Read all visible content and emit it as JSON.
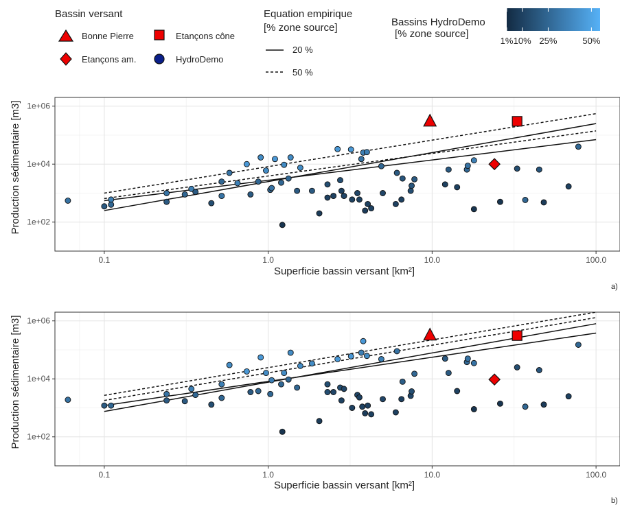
{
  "legend": {
    "shape_title": "Bassin versant",
    "shapes": [
      {
        "label": "Bonne Pierre",
        "symbol": "triangle-icon"
      },
      {
        "label": "Etançons cône",
        "symbol": "square-icon"
      },
      {
        "label": "Etançons am.",
        "symbol": "diamond-icon"
      },
      {
        "label": "HydroDemo",
        "symbol": "circle-icon"
      }
    ],
    "line_title_1": "Equation empirique",
    "line_title_2": "[% zone source]",
    "lines": [
      {
        "label": "20 %",
        "style": "solid"
      },
      {
        "label": "50 %",
        "style": "dashed"
      }
    ],
    "color_title_1": "Bassins HydroDemo",
    "color_title_2": "[% zone source]",
    "color_ticks": [
      {
        "label": "1%",
        "value": 1
      },
      {
        "label": "10%",
        "value": 10
      },
      {
        "label": "25%",
        "value": 25
      },
      {
        "label": "50%",
        "value": 50
      }
    ],
    "color_low": "#132b43",
    "color_high": "#56b1f7"
  },
  "chart_data": [
    {
      "type": "scatter",
      "tag": "a)",
      "xlabel": "Superficie bassin versant [km²]",
      "ylabel": "Production sédimentaire [m3]",
      "x_scale": "log10",
      "y_scale": "log10",
      "xlim": [
        0.05,
        140
      ],
      "ylim": [
        10,
        2000000
      ],
      "x_ticks": [
        {
          "value": 0.1,
          "label": "0.1"
        },
        {
          "value": 1,
          "label": "1.0"
        },
        {
          "value": 10,
          "label": "10.0"
        },
        {
          "value": 100,
          "label": "100.0"
        }
      ],
      "y_ticks": [
        {
          "value": 100,
          "label": "1e+02"
        },
        {
          "value": 10000,
          "label": "1e+04"
        },
        {
          "value": 1000000,
          "label": "1e+06"
        }
      ],
      "grid": true,
      "lines": [
        {
          "style": "solid",
          "x": [
            0.1,
            100
          ],
          "y": [
            250,
            250000
          ]
        },
        {
          "style": "solid",
          "x": [
            0.1,
            100
          ],
          "y": [
            550,
            70000
          ]
        },
        {
          "style": "dashed",
          "x": [
            0.1,
            100
          ],
          "y": [
            1000,
            550000
          ]
        },
        {
          "style": "dashed",
          "x": [
            0.1,
            100
          ],
          "y": [
            650,
            140000
          ]
        }
      ],
      "special": [
        {
          "name": "Bonne Pierre",
          "symbol": "triangle",
          "x": 9.7,
          "y": 300000
        },
        {
          "name": "Etançons cône",
          "symbol": "square",
          "x": 33,
          "y": 300000
        },
        {
          "name": "Etançons am.",
          "symbol": "diamond",
          "x": 24,
          "y": 10000
        }
      ],
      "points": [
        {
          "x": 0.06,
          "y": 550,
          "c": 30
        },
        {
          "x": 0.1,
          "y": 350,
          "c": 20
        },
        {
          "x": 0.11,
          "y": 600,
          "c": 35
        },
        {
          "x": 0.11,
          "y": 400,
          "c": 25
        },
        {
          "x": 0.24,
          "y": 500,
          "c": 20
        },
        {
          "x": 0.24,
          "y": 1000,
          "c": 30
        },
        {
          "x": 0.31,
          "y": 900,
          "c": 25
        },
        {
          "x": 0.34,
          "y": 1400,
          "c": 35
        },
        {
          "x": 0.36,
          "y": 1100,
          "c": 20
        },
        {
          "x": 0.45,
          "y": 450,
          "c": 15
        },
        {
          "x": 0.52,
          "y": 800,
          "c": 30
        },
        {
          "x": 0.52,
          "y": 2500,
          "c": 25
        },
        {
          "x": 0.58,
          "y": 5000,
          "c": 30
        },
        {
          "x": 0.65,
          "y": 2200,
          "c": 35
        },
        {
          "x": 0.74,
          "y": 10000,
          "c": 45
        },
        {
          "x": 0.78,
          "y": 900,
          "c": 20
        },
        {
          "x": 0.87,
          "y": 2500,
          "c": 25
        },
        {
          "x": 0.9,
          "y": 17000,
          "c": 40
        },
        {
          "x": 0.97,
          "y": 6000,
          "c": 40
        },
        {
          "x": 1.03,
          "y": 1300,
          "c": 25
        },
        {
          "x": 1.05,
          "y": 1500,
          "c": 30
        },
        {
          "x": 1.1,
          "y": 15000,
          "c": 45
        },
        {
          "x": 1.2,
          "y": 2300,
          "c": 25
        },
        {
          "x": 1.22,
          "y": 80,
          "c": 5
        },
        {
          "x": 1.25,
          "y": 9500,
          "c": 40
        },
        {
          "x": 1.33,
          "y": 3200,
          "c": 25
        },
        {
          "x": 1.37,
          "y": 17000,
          "c": 40
        },
        {
          "x": 1.5,
          "y": 1200,
          "c": 20
        },
        {
          "x": 1.57,
          "y": 7500,
          "c": 40
        },
        {
          "x": 1.85,
          "y": 1200,
          "c": 20
        },
        {
          "x": 2.05,
          "y": 200,
          "c": 8
        },
        {
          "x": 2.3,
          "y": 700,
          "c": 10
        },
        {
          "x": 2.3,
          "y": 2000,
          "c": 15
        },
        {
          "x": 2.5,
          "y": 800,
          "c": 10
        },
        {
          "x": 2.65,
          "y": 33000,
          "c": 45
        },
        {
          "x": 2.75,
          "y": 2800,
          "c": 15
        },
        {
          "x": 2.8,
          "y": 1200,
          "c": 10
        },
        {
          "x": 2.9,
          "y": 800,
          "c": 12
        },
        {
          "x": 3.2,
          "y": 32000,
          "c": 45
        },
        {
          "x": 3.25,
          "y": 600,
          "c": 10
        },
        {
          "x": 3.5,
          "y": 1000,
          "c": 12
        },
        {
          "x": 3.6,
          "y": 600,
          "c": 10
        },
        {
          "x": 3.7,
          "y": 15000,
          "c": 30
        },
        {
          "x": 3.8,
          "y": 25000,
          "c": 35
        },
        {
          "x": 3.9,
          "y": 250,
          "c": 8
        },
        {
          "x": 4.0,
          "y": 26000,
          "c": 35
        },
        {
          "x": 4.05,
          "y": 420,
          "c": 10
        },
        {
          "x": 4.25,
          "y": 300,
          "c": 10
        },
        {
          "x": 4.9,
          "y": 8500,
          "c": 25
        },
        {
          "x": 5.0,
          "y": 1000,
          "c": 12
        },
        {
          "x": 6.0,
          "y": 420,
          "c": 10
        },
        {
          "x": 6.1,
          "y": 5000,
          "c": 20
        },
        {
          "x": 6.5,
          "y": 600,
          "c": 10
        },
        {
          "x": 6.6,
          "y": 3200,
          "c": 18
        },
        {
          "x": 7.4,
          "y": 1200,
          "c": 15
        },
        {
          "x": 7.5,
          "y": 1800,
          "c": 18
        },
        {
          "x": 7.8,
          "y": 3000,
          "c": 20
        },
        {
          "x": 12,
          "y": 2000,
          "c": 10
        },
        {
          "x": 12.6,
          "y": 6500,
          "c": 20
        },
        {
          "x": 14.2,
          "y": 1600,
          "c": 10
        },
        {
          "x": 16.3,
          "y": 6500,
          "c": 25
        },
        {
          "x": 16.5,
          "y": 8800,
          "c": 30
        },
        {
          "x": 18,
          "y": 13500,
          "c": 35
        },
        {
          "x": 18,
          "y": 280,
          "c": 5
        },
        {
          "x": 26,
          "y": 500,
          "c": 5
        },
        {
          "x": 33,
          "y": 7000,
          "c": 15
        },
        {
          "x": 37,
          "y": 580,
          "c": 25
        },
        {
          "x": 45,
          "y": 6500,
          "c": 18
        },
        {
          "x": 48,
          "y": 480,
          "c": 8
        },
        {
          "x": 68,
          "y": 1700,
          "c": 10
        },
        {
          "x": 78,
          "y": 40000,
          "c": 25
        }
      ]
    },
    {
      "type": "scatter",
      "tag": "b)",
      "xlabel": "Superficie bassin versant [km²]",
      "ylabel": "Production sédimentaire [m3]",
      "x_scale": "log10",
      "y_scale": "log10",
      "xlim": [
        0.05,
        140
      ],
      "ylim": [
        10,
        2000000
      ],
      "x_ticks": [
        {
          "value": 0.1,
          "label": "0.1"
        },
        {
          "value": 1,
          "label": "1.0"
        },
        {
          "value": 10,
          "label": "10.0"
        },
        {
          "value": 100,
          "label": "100.0"
        }
      ],
      "y_ticks": [
        {
          "value": 100,
          "label": "1e+02"
        },
        {
          "value": 10000,
          "label": "1e+04"
        },
        {
          "value": 1000000,
          "label": "1e+06"
        }
      ],
      "grid": true,
      "lines": [
        {
          "style": "solid",
          "x": [
            0.1,
            100
          ],
          "y": [
            750,
            800000
          ]
        },
        {
          "style": "solid",
          "x": [
            0.1,
            100
          ],
          "y": [
            1200,
            380000
          ]
        },
        {
          "style": "dashed",
          "x": [
            0.1,
            100
          ],
          "y": [
            2700,
            2000000
          ]
        },
        {
          "style": "dashed",
          "x": [
            0.1,
            100
          ],
          "y": [
            1800,
            1300000
          ]
        }
      ],
      "special": [
        {
          "name": "Bonne Pierre",
          "symbol": "triangle",
          "x": 9.7,
          "y": 320000
        },
        {
          "name": "Etançons cône",
          "symbol": "square",
          "x": 33,
          "y": 310000
        },
        {
          "name": "Etançons am.",
          "symbol": "diamond",
          "x": 24,
          "y": 9500
        }
      ],
      "points": [
        {
          "x": 0.06,
          "y": 1900,
          "c": 30
        },
        {
          "x": 0.1,
          "y": 1200,
          "c": 20
        },
        {
          "x": 0.11,
          "y": 1200,
          "c": 25
        },
        {
          "x": 0.24,
          "y": 1800,
          "c": 20
        },
        {
          "x": 0.24,
          "y": 3000,
          "c": 30
        },
        {
          "x": 0.31,
          "y": 1700,
          "c": 20
        },
        {
          "x": 0.34,
          "y": 4500,
          "c": 35
        },
        {
          "x": 0.36,
          "y": 2800,
          "c": 25
        },
        {
          "x": 0.45,
          "y": 1300,
          "c": 15
        },
        {
          "x": 0.52,
          "y": 6500,
          "c": 35
        },
        {
          "x": 0.52,
          "y": 2200,
          "c": 25
        },
        {
          "x": 0.58,
          "y": 30000,
          "c": 40
        },
        {
          "x": 0.74,
          "y": 18000,
          "c": 45
        },
        {
          "x": 0.78,
          "y": 3500,
          "c": 20
        },
        {
          "x": 0.87,
          "y": 3800,
          "c": 25
        },
        {
          "x": 0.9,
          "y": 55000,
          "c": 45
        },
        {
          "x": 0.97,
          "y": 16000,
          "c": 40
        },
        {
          "x": 1.03,
          "y": 3000,
          "c": 25
        },
        {
          "x": 1.05,
          "y": 9000,
          "c": 35
        },
        {
          "x": 1.2,
          "y": 6500,
          "c": 25
        },
        {
          "x": 1.22,
          "y": 150,
          "c": 5
        },
        {
          "x": 1.25,
          "y": 16000,
          "c": 40
        },
        {
          "x": 1.33,
          "y": 9500,
          "c": 25
        },
        {
          "x": 1.37,
          "y": 80000,
          "c": 40
        },
        {
          "x": 1.5,
          "y": 5000,
          "c": 25
        },
        {
          "x": 1.57,
          "y": 28000,
          "c": 40
        },
        {
          "x": 1.85,
          "y": 34000,
          "c": 40
        },
        {
          "x": 2.05,
          "y": 350,
          "c": 8
        },
        {
          "x": 2.3,
          "y": 3500,
          "c": 15
        },
        {
          "x": 2.3,
          "y": 6500,
          "c": 15
        },
        {
          "x": 2.5,
          "y": 3500,
          "c": 12
        },
        {
          "x": 2.65,
          "y": 48000,
          "c": 45
        },
        {
          "x": 2.75,
          "y": 5000,
          "c": 15
        },
        {
          "x": 2.8,
          "y": 1800,
          "c": 10
        },
        {
          "x": 2.9,
          "y": 4500,
          "c": 12
        },
        {
          "x": 3.2,
          "y": 60000,
          "c": 45
        },
        {
          "x": 3.25,
          "y": 1000,
          "c": 10
        },
        {
          "x": 3.5,
          "y": 2800,
          "c": 12
        },
        {
          "x": 3.6,
          "y": 2300,
          "c": 10
        },
        {
          "x": 3.7,
          "y": 80000,
          "c": 35
        },
        {
          "x": 3.8,
          "y": 200000,
          "c": 45
        },
        {
          "x": 3.75,
          "y": 1100,
          "c": 10
        },
        {
          "x": 3.9,
          "y": 650,
          "c": 8
        },
        {
          "x": 4.0,
          "y": 62000,
          "c": 40
        },
        {
          "x": 4.05,
          "y": 1200,
          "c": 10
        },
        {
          "x": 4.25,
          "y": 600,
          "c": 10
        },
        {
          "x": 4.9,
          "y": 48000,
          "c": 35
        },
        {
          "x": 5.0,
          "y": 2000,
          "c": 12
        },
        {
          "x": 6.0,
          "y": 700,
          "c": 10
        },
        {
          "x": 6.1,
          "y": 90000,
          "c": 30
        },
        {
          "x": 6.5,
          "y": 2000,
          "c": 10
        },
        {
          "x": 6.6,
          "y": 8000,
          "c": 22
        },
        {
          "x": 7.4,
          "y": 2600,
          "c": 12
        },
        {
          "x": 7.5,
          "y": 3700,
          "c": 15
        },
        {
          "x": 7.8,
          "y": 15000,
          "c": 25
        },
        {
          "x": 12,
          "y": 50000,
          "c": 20
        },
        {
          "x": 12.6,
          "y": 16000,
          "c": 20
        },
        {
          "x": 14.2,
          "y": 3800,
          "c": 10
        },
        {
          "x": 16.3,
          "y": 38000,
          "c": 25
        },
        {
          "x": 16.5,
          "y": 50000,
          "c": 30
        },
        {
          "x": 18,
          "y": 35000,
          "c": 30
        },
        {
          "x": 18,
          "y": 900,
          "c": 5
        },
        {
          "x": 26,
          "y": 1400,
          "c": 5
        },
        {
          "x": 33,
          "y": 25000,
          "c": 15
        },
        {
          "x": 37,
          "y": 1100,
          "c": 25
        },
        {
          "x": 45,
          "y": 20000,
          "c": 18
        },
        {
          "x": 48,
          "y": 1300,
          "c": 8
        },
        {
          "x": 68,
          "y": 2500,
          "c": 10
        },
        {
          "x": 78,
          "y": 150000,
          "c": 25
        }
      ]
    }
  ]
}
